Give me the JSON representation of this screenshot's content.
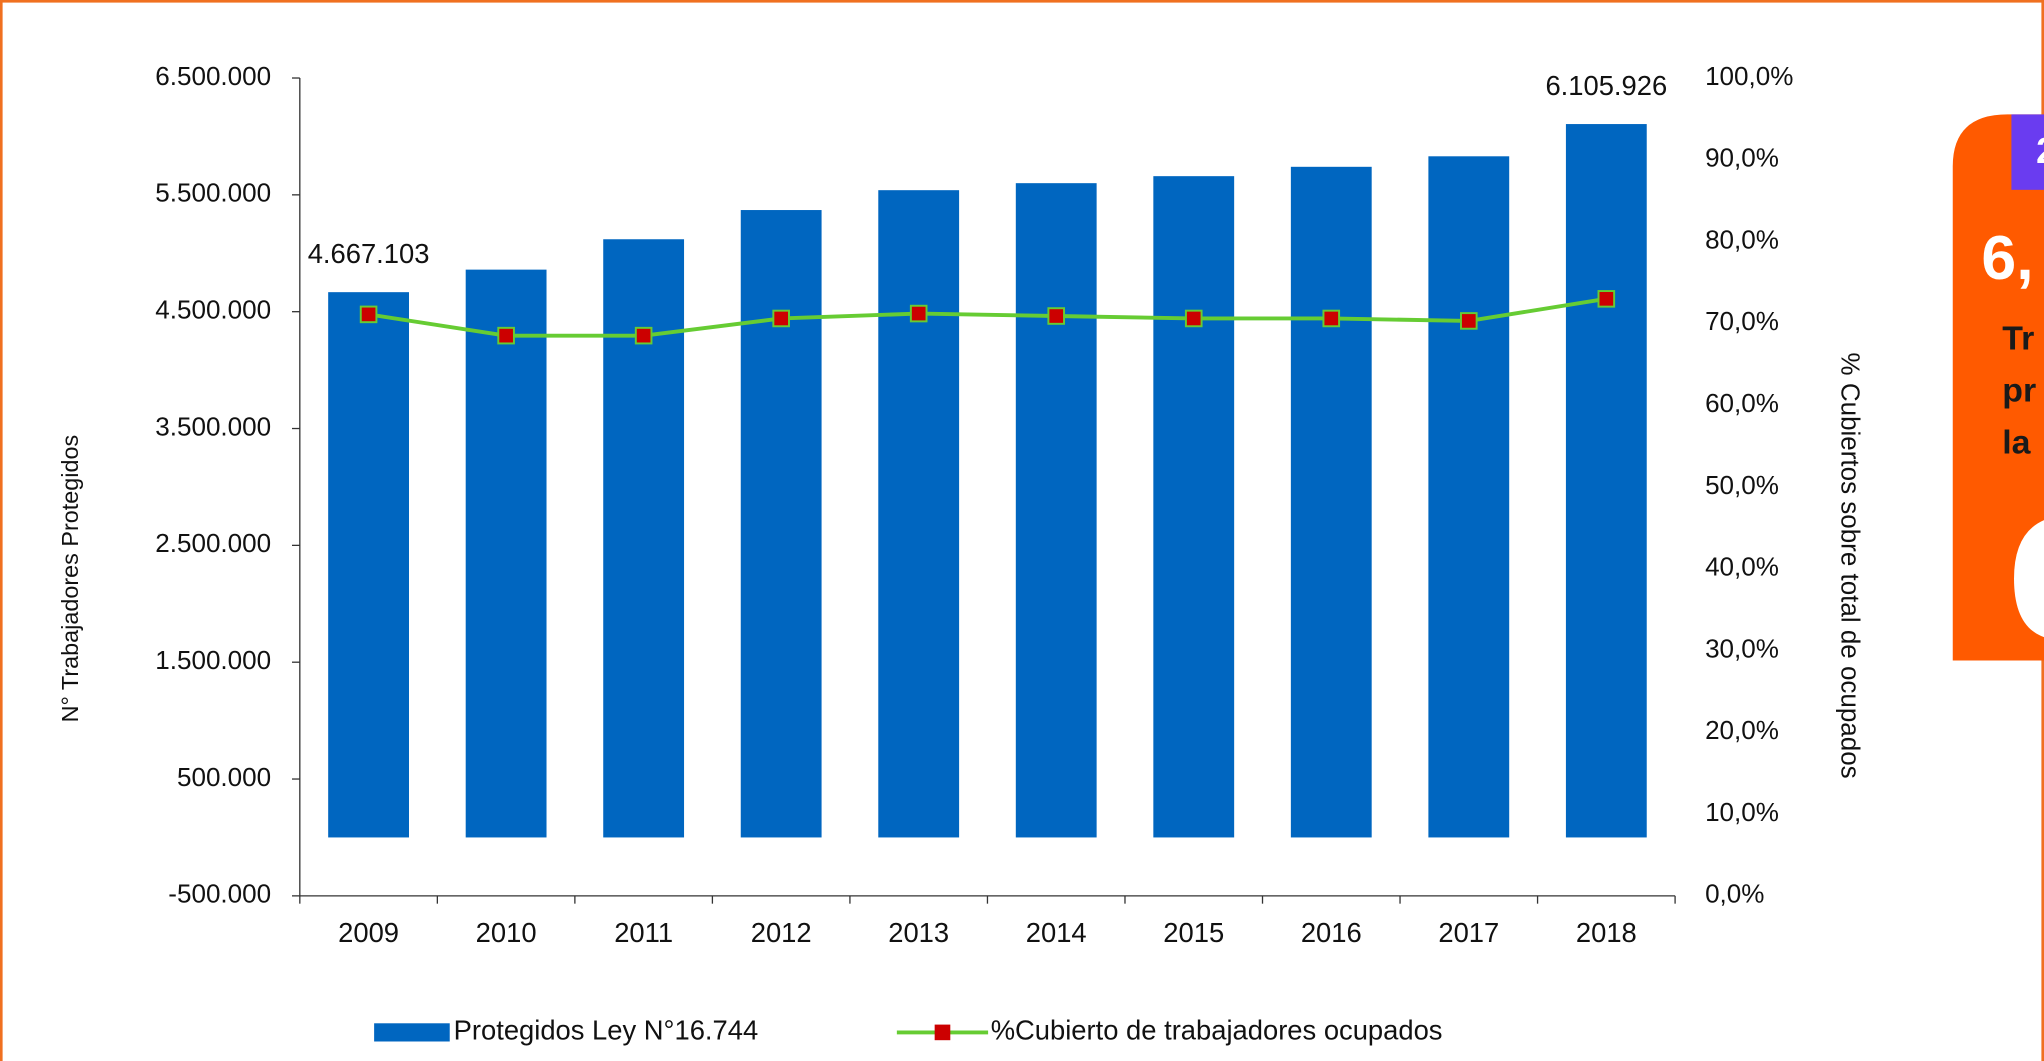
{
  "chart_data": {
    "type": "bar_line",
    "y_axis_label": "N° Trabajadores Protegidos",
    "y2_axis_label": "% Cubiertos sobre total de ocupados",
    "categories": [
      "2009",
      "2010",
      "2011",
      "2012",
      "2013",
      "2014",
      "2015",
      "2016",
      "2017",
      "2018"
    ],
    "series": [
      {
        "name": "Protegidos Ley N°16.744",
        "color": "#0066c0",
        "type": "bar",
        "values": [
          4667103,
          4860000,
          5120000,
          5370000,
          5540000,
          5600000,
          5660000,
          5740000,
          5830000,
          6105926
        ],
        "value_labels": [
          "4.667.103",
          null,
          null,
          null,
          null,
          null,
          null,
          null,
          null,
          "6.105.926"
        ]
      },
      {
        "name": "%Cubierto de trabajadores ocupados",
        "color": "#66cc33",
        "marker_color": "#cc0000",
        "type": "line",
        "axis": "y2",
        "values": [
          71.1,
          68.5,
          68.5,
          70.6,
          71.2,
          70.9,
          70.6,
          70.6,
          70.3,
          73.0
        ]
      }
    ],
    "ylim": [
      -500000,
      6500000
    ],
    "yticks": [
      {
        "value": -500000,
        "label": "-500.000"
      },
      {
        "value": 500000,
        "label": "500.000"
      },
      {
        "value": 1500000,
        "label": "1.500.000"
      },
      {
        "value": 2500000,
        "label": "2.500.000"
      },
      {
        "value": 3500000,
        "label": "3.500.000"
      },
      {
        "value": 4500000,
        "label": "4.500.000"
      },
      {
        "value": 5500000,
        "label": "5.500.000"
      },
      {
        "value": 6500000,
        "label": "6.500.000"
      }
    ],
    "y2lim": [
      0,
      100
    ],
    "y2ticks": [
      {
        "value": 0,
        "label": "0,0%"
      },
      {
        "value": 10,
        "label": "10,0%"
      },
      {
        "value": 20,
        "label": "20,0%"
      },
      {
        "value": 30,
        "label": "30,0%"
      },
      {
        "value": 40,
        "label": "40,0%"
      },
      {
        "value": 50,
        "label": "50,0%"
      },
      {
        "value": 60,
        "label": "60,0%"
      },
      {
        "value": 70,
        "label": "70,0%"
      },
      {
        "value": 80,
        "label": "80,0%"
      },
      {
        "value": 90,
        "label": "90,0%"
      },
      {
        "value": 100,
        "label": "100,0%"
      }
    ],
    "legend": "bottom"
  },
  "side_panel": {
    "tab": "2",
    "big": "6,",
    "lines": [
      "Tr",
      "pr",
      "la"
    ]
  }
}
